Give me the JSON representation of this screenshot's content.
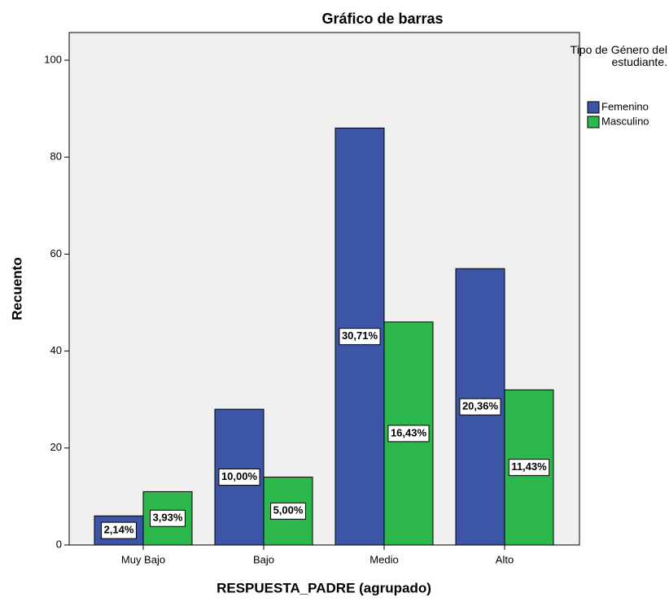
{
  "chart_data": {
    "type": "bar",
    "title": "Gráfico de barras",
    "x_label": "RESPUESTA_PADRE (agrupado)",
    "y_label": "Recuento",
    "categories": [
      "Muy Bajo",
      "Bajo",
      "Medio",
      "Alto"
    ],
    "legend_title": "Tipo de Género del estudiante.",
    "series": [
      {
        "name": "Femenino",
        "color": "#3c55a6",
        "values": [
          6,
          28,
          86,
          57
        ],
        "labels": [
          "2,14%",
          "10,00%",
          "30,71%",
          "20,36%"
        ]
      },
      {
        "name": "Masculino",
        "color": "#2db84d",
        "values": [
          11,
          14,
          46,
          32
        ],
        "labels": [
          "3,93%",
          "5,00%",
          "16,43%",
          "11,43%"
        ]
      }
    ],
    "ylim": [
      0,
      105.7
    ],
    "yticks": [
      0,
      20,
      40,
      60,
      80,
      100
    ],
    "legend": "right"
  }
}
